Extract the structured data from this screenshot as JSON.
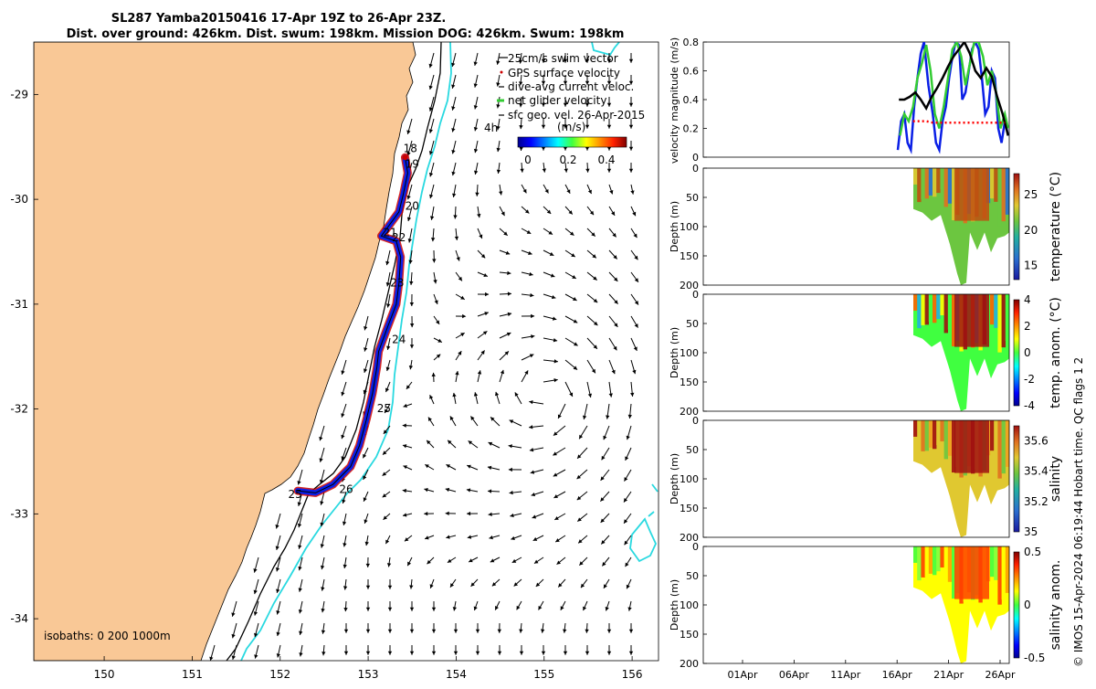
{
  "title": {
    "line1": "SL287 Yamba20150416 17-Apr 19Z to 26-Apr 23Z.",
    "line2": "Dist. over ground: 426km. Dist. swum: 198km. Mission DOG: 426km. Swum: 198km"
  },
  "colors": {
    "land": "#f9c896",
    "cyan_isobath": "#29d9e0",
    "glider_red": "#cc0000",
    "glider_blue": "#0a1fe6",
    "net_green": "#33cc33",
    "speed_black": "#000000"
  },
  "chart_data": [
    {
      "id": "map",
      "type": "scatter",
      "xlim": [
        149.2,
        156.3
      ],
      "ylim": [
        -34.4,
        -28.5
      ],
      "xticks": [
        "150",
        "151",
        "152",
        "153",
        "154",
        "155",
        "156"
      ],
      "yticks": [
        "-29",
        "-30",
        "-31",
        "-32",
        "-33",
        "-34"
      ],
      "legend": {
        "placement": "top-right",
        "entries": [
          "25cm/s swim vector",
          "GPS surface velocity",
          "dive-avg current veloc.",
          "net glider velocity",
          "sfc geo. vel. 26-Apr-2015"
        ]
      },
      "colorbar": {
        "title": "(m/s)",
        "ticks": [
          "0",
          "0.2",
          "0.4"
        ],
        "range": [
          0,
          0.5
        ]
      },
      "time_marker": "4h",
      "isobath_label": "isobaths: 0   200  1000m",
      "day_labels": [
        {
          "day": "18",
          "lon": 153.48,
          "lat": -29.55
        },
        {
          "day": "19",
          "lon": 153.5,
          "lat": -29.7
        },
        {
          "day": "20",
          "lon": 153.5,
          "lat": -30.1
        },
        {
          "day": "21",
          "lon": 153.25,
          "lat": -30.35
        },
        {
          "day": "22",
          "lon": 153.35,
          "lat": -30.4
        },
        {
          "day": "23",
          "lon": 153.33,
          "lat": -30.83
        },
        {
          "day": "24",
          "lon": 153.35,
          "lat": -31.37
        },
        {
          "day": "25",
          "lon": 153.18,
          "lat": -32.03
        },
        {
          "day": "26",
          "lon": 152.75,
          "lat": -32.8
        },
        {
          "day": "25",
          "lon": 152.17,
          "lat": -32.85
        }
      ],
      "track": [
        [
          153.42,
          -29.6
        ],
        [
          153.45,
          -29.75
        ],
        [
          153.4,
          -29.95
        ],
        [
          153.35,
          -30.12
        ],
        [
          153.15,
          -30.35
        ],
        [
          153.32,
          -30.4
        ],
        [
          153.37,
          -30.55
        ],
        [
          153.35,
          -30.8
        ],
        [
          153.32,
          -31.0
        ],
        [
          153.22,
          -31.22
        ],
        [
          153.12,
          -31.45
        ],
        [
          153.1,
          -31.6
        ],
        [
          153.05,
          -31.85
        ],
        [
          152.98,
          -32.1
        ],
        [
          152.9,
          -32.35
        ],
        [
          152.8,
          -32.55
        ],
        [
          152.6,
          -32.72
        ],
        [
          152.4,
          -32.8
        ],
        [
          152.2,
          -32.78
        ]
      ]
    },
    {
      "id": "velocity",
      "type": "line",
      "ylabel": "velocity magnitude (m/s)",
      "ylim": [
        0,
        0.8
      ],
      "yticks": [
        "0",
        "0.2",
        "0.4",
        "0.6",
        "0.8"
      ],
      "xlim": [
        0,
        28
      ],
      "series": [
        {
          "color": "#0a1fe6",
          "x": [
            17.8,
            18.1,
            18.4,
            18.7,
            19.0,
            19.3,
            19.6,
            19.9,
            20.2,
            20.6,
            21.0,
            21.3,
            21.6,
            21.9,
            22.2,
            22.5,
            22.8,
            23.1,
            23.4,
            23.7,
            24.0,
            24.3,
            24.6,
            24.9,
            25.2,
            25.5,
            25.8,
            26.1,
            26.4,
            26.7,
            27.0,
            27.3,
            27.6,
            27.9
          ],
          "values": [
            0.05,
            0.25,
            0.3,
            0.1,
            0.05,
            0.35,
            0.55,
            0.72,
            0.8,
            0.5,
            0.3,
            0.1,
            0.05,
            0.25,
            0.35,
            0.55,
            0.7,
            0.8,
            0.78,
            0.4,
            0.45,
            0.6,
            0.75,
            0.8,
            0.75,
            0.55,
            0.3,
            0.35,
            0.6,
            0.55,
            0.2,
            0.1,
            0.25,
            0.15
          ]
        },
        {
          "color": "#33cc33",
          "x": [
            18.0,
            18.4,
            18.8,
            19.2,
            19.6,
            20.0,
            20.4,
            20.8,
            21.2,
            21.6,
            22.0,
            22.4,
            22.8,
            23.2,
            23.6,
            24.0,
            24.4,
            24.8,
            25.2,
            25.6,
            26.0,
            26.4,
            26.8,
            27.2,
            27.6,
            27.9
          ],
          "values": [
            0.15,
            0.3,
            0.25,
            0.35,
            0.55,
            0.65,
            0.78,
            0.6,
            0.3,
            0.2,
            0.35,
            0.55,
            0.75,
            0.8,
            0.7,
            0.5,
            0.65,
            0.8,
            0.8,
            0.7,
            0.5,
            0.6,
            0.45,
            0.2,
            0.3,
            0.2
          ]
        },
        {
          "color": "#000000",
          "x": [
            17.9,
            18.4,
            18.9,
            19.4,
            19.9,
            20.4,
            20.9,
            21.4,
            21.9,
            22.4,
            22.9,
            23.4,
            23.9,
            24.4,
            24.9,
            25.4,
            25.9,
            26.4,
            26.9,
            27.4,
            27.9
          ],
          "values": [
            0.4,
            0.4,
            0.42,
            0.45,
            0.4,
            0.34,
            0.42,
            0.48,
            0.55,
            0.63,
            0.7,
            0.75,
            0.8,
            0.72,
            0.6,
            0.55,
            0.62,
            0.56,
            0.42,
            0.3,
            0.15
          ]
        },
        {
          "color": "#ff0000",
          "x": [
            19.2,
            19.8,
            20.4,
            21.0,
            21.6,
            22.2,
            22.8,
            23.4,
            24.0,
            24.6,
            25.2,
            25.8,
            26.4,
            27.0,
            27.6
          ],
          "values": [
            0.25,
            0.25,
            0.25,
            0.24,
            0.24,
            0.24,
            0.24,
            0.24,
            0.24,
            0.24,
            0.24,
            0.24,
            0.24,
            0.24,
            0.24
          ]
        }
      ]
    },
    {
      "id": "temperature",
      "type": "heatmap",
      "ylabel": "Depth (m)",
      "ylim": [
        200,
        0
      ],
      "yticks": [
        "0",
        "50",
        "100",
        "150",
        "200"
      ],
      "colorbar": {
        "label": "temperature (°C)",
        "ticks": [
          "25",
          "20",
          "15"
        ],
        "range": [
          13,
          28
        ]
      }
    },
    {
      "id": "temp_anom",
      "type": "heatmap",
      "ylabel": "Depth (m)",
      "ylim": [
        200,
        0
      ],
      "yticks": [
        "0",
        "50",
        "100",
        "150",
        "200"
      ],
      "colorbar": {
        "label": "temp. anom. (°C)",
        "ticks": [
          "4",
          "2",
          "0",
          "-2",
          "-4"
        ],
        "range": [
          -4,
          4
        ]
      }
    },
    {
      "id": "salinity",
      "type": "heatmap",
      "ylabel": "Depth (m)",
      "ylim": [
        200,
        0
      ],
      "yticks": [
        "0",
        "50",
        "100",
        "150",
        "200"
      ],
      "colorbar": {
        "label": "salinity",
        "ticks": [
          "35.6",
          "35.4",
          "35.2",
          "35"
        ],
        "range": [
          35.0,
          35.7
        ]
      }
    },
    {
      "id": "sal_anom",
      "type": "heatmap",
      "ylabel": "Depth (m)",
      "ylim": [
        200,
        0
      ],
      "yticks": [
        "0",
        "50",
        "100",
        "150",
        "200"
      ],
      "xticks": [
        "01Apr",
        "06Apr",
        "11Apr",
        "16Apr",
        "21Apr",
        "26Apr"
      ],
      "colorbar": {
        "label": "salinity anom.",
        "ticks": [
          "0.5",
          "0",
          "-0.5"
        ],
        "range": [
          -0.5,
          0.5
        ]
      }
    }
  ],
  "footer": "© IMOS 15-Apr-2024 06:19:44 Hobart time. QC flags 1  2"
}
